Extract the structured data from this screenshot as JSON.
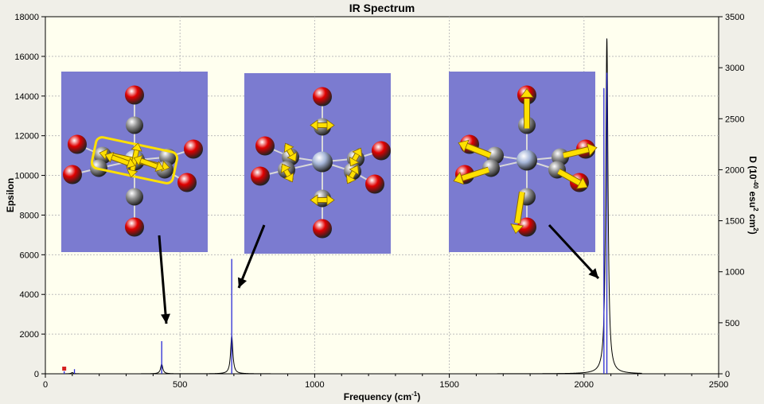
{
  "title": "IR Spectrum",
  "chart_data": {
    "type": "line",
    "title": "IR Spectrum",
    "xlabel": "Frequency (cm",
    "xlabel_sup": "-1",
    "xlabel_end": ")",
    "ylabel_left": "Epsilon",
    "ylabel_right_parts": [
      "D (10",
      "-40",
      " esu",
      "2",
      " cm",
      "2",
      ")"
    ],
    "xlim": [
      0,
      2500
    ],
    "ylim_left": [
      0,
      18000
    ],
    "ylim_right": [
      0,
      3500
    ],
    "x_ticks": [
      0,
      500,
      1000,
      1500,
      2000,
      2500
    ],
    "y_ticks_left": [
      0,
      2000,
      4000,
      6000,
      8000,
      10000,
      12000,
      14000,
      16000,
      18000
    ],
    "y_ticks_right": [
      0,
      500,
      1000,
      1500,
      2000,
      2500,
      3000,
      3500
    ],
    "grid": true,
    "spectrum_peaks": [
      {
        "freq": 100,
        "epsilon": 60
      },
      {
        "freq": 432,
        "epsilon": 480
      },
      {
        "freq": 692,
        "epsilon": 1900
      },
      {
        "freq": 2085,
        "epsilon": 16900
      }
    ],
    "intensity_sticks": [
      {
        "freq": 70,
        "D": 25
      },
      {
        "freq": 108,
        "D": 45
      },
      {
        "freq": 432,
        "D": 320
      },
      {
        "freq": 692,
        "D": 1125
      },
      {
        "freq": 2074,
        "D": 2800
      },
      {
        "freq": 2085,
        "D": 2950
      }
    ],
    "colors": {
      "spectrum": "#000000",
      "sticks": "#2a2ad6",
      "marker": "#d42020",
      "plot_bg": "#ffffef",
      "panel_bg": "#7b7bd0",
      "arrow": "#ffe000",
      "oxygen": "#e00000",
      "carbon": "#909090",
      "metal": "#a6b6d8"
    },
    "mode_panels": [
      {
        "name": "low-frequency-mode",
        "target_freq": 432
      },
      {
        "name": "mid-frequency-mode",
        "target_freq": 692
      },
      {
        "name": "high-frequency-mode",
        "target_freq": 2085
      }
    ]
  }
}
